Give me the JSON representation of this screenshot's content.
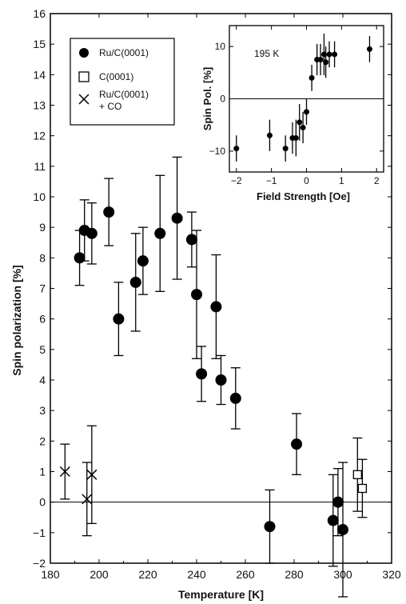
{
  "chart_data": [
    {
      "type": "scatter",
      "title": "",
      "xlabel": "Temperature [K]",
      "ylabel": "Spin polarization [%]",
      "xlim": [
        180,
        320
      ],
      "ylim": [
        -2,
        16
      ],
      "x_ticks": [
        180,
        200,
        220,
        240,
        260,
        280,
        300,
        320
      ],
      "y_ticks": [
        -2,
        -1,
        0,
        1,
        2,
        3,
        4,
        5,
        6,
        7,
        8,
        9,
        10,
        11,
        12,
        13,
        14,
        15,
        16
      ],
      "reference_line_y": 0,
      "legend_position": "top-left",
      "series": [
        {
          "name": "Ru/C(0001)",
          "marker": "filled-circle",
          "points": [
            {
              "x": 192,
              "y": 8.0,
              "err": 0.9
            },
            {
              "x": 194,
              "y": 8.9,
              "err": 1.0
            },
            {
              "x": 197,
              "y": 8.8,
              "err": 1.0
            },
            {
              "x": 204,
              "y": 9.5,
              "err": 1.1
            },
            {
              "x": 208,
              "y": 6.0,
              "err": 1.2
            },
            {
              "x": 215,
              "y": 7.2,
              "err": 1.6
            },
            {
              "x": 218,
              "y": 7.9,
              "err": 1.1
            },
            {
              "x": 225,
              "y": 8.8,
              "err": 1.9
            },
            {
              "x": 232,
              "y": 9.3,
              "err": 2.0
            },
            {
              "x": 238,
              "y": 8.6,
              "err": 0.9
            },
            {
              "x": 240,
              "y": 6.8,
              "err": 2.1
            },
            {
              "x": 242,
              "y": 4.2,
              "err": 0.9
            },
            {
              "x": 248,
              "y": 6.4,
              "err": 1.7
            },
            {
              "x": 250,
              "y": 4.0,
              "err": 0.8
            },
            {
              "x": 256,
              "y": 3.4,
              "err": 1.0
            },
            {
              "x": 270,
              "y": -0.8,
              "err": 1.2
            },
            {
              "x": 281,
              "y": 1.9,
              "err": 1.0
            },
            {
              "x": 296,
              "y": -0.6,
              "err": 1.5
            },
            {
              "x": 298,
              "y": 0.0,
              "err": 1.1
            },
            {
              "x": 300,
              "y": -0.9,
              "err": 2.2
            }
          ]
        },
        {
          "name": "C(0001)",
          "marker": "open-square",
          "points": [
            {
              "x": 306,
              "y": 0.9,
              "err": 1.2
            },
            {
              "x": 308,
              "y": 0.45,
              "err": 0.95
            }
          ]
        },
        {
          "name": "Ru/C(0001)\n+ CO",
          "marker": "x",
          "points": [
            {
              "x": 186,
              "y": 1.0,
              "err": 0.9
            },
            {
              "x": 195,
              "y": 0.1,
              "err": 1.2
            },
            {
              "x": 197,
              "y": 0.9,
              "err": 1.6
            }
          ]
        }
      ]
    },
    {
      "type": "scatter",
      "title": "",
      "annotation": "195 K",
      "xlabel": "Field Strength [Oe]",
      "ylabel": "Spin Pol. [%]",
      "xlim": [
        -2.2,
        2.2
      ],
      "ylim": [
        -14,
        14
      ],
      "x_ticks": [
        -2,
        -1,
        0,
        1,
        2
      ],
      "y_ticks": [
        -10,
        0,
        10
      ],
      "reference_line_y": 0,
      "series": [
        {
          "name": "",
          "marker": "filled-circle",
          "points": [
            {
              "x": -2.0,
              "y": -9.5,
              "err": 2.5
            },
            {
              "x": -1.05,
              "y": -7.0,
              "err": 3.0
            },
            {
              "x": -0.6,
              "y": -9.5,
              "err": 2.5
            },
            {
              "x": -0.4,
              "y": -7.5,
              "err": 3.0
            },
            {
              "x": -0.3,
              "y": -7.5,
              "err": 3.5
            },
            {
              "x": -0.2,
              "y": -4.5,
              "err": 3.5
            },
            {
              "x": -0.1,
              "y": -5.5,
              "err": 3.0
            },
            {
              "x": 0.0,
              "y": -2.5,
              "err": 2.5
            },
            {
              "x": 0.15,
              "y": 4.0,
              "err": 2.5
            },
            {
              "x": 0.3,
              "y": 7.5,
              "err": 3.0
            },
            {
              "x": 0.4,
              "y": 7.5,
              "err": 3.0
            },
            {
              "x": 0.5,
              "y": 8.5,
              "err": 4.0
            },
            {
              "x": 0.55,
              "y": 7.0,
              "err": 3.0
            },
            {
              "x": 0.65,
              "y": 8.5,
              "err": 2.5
            },
            {
              "x": 0.8,
              "y": 8.5,
              "err": 2.5
            },
            {
              "x": 1.8,
              "y": 9.5,
              "err": 2.5
            }
          ]
        }
      ]
    }
  ]
}
